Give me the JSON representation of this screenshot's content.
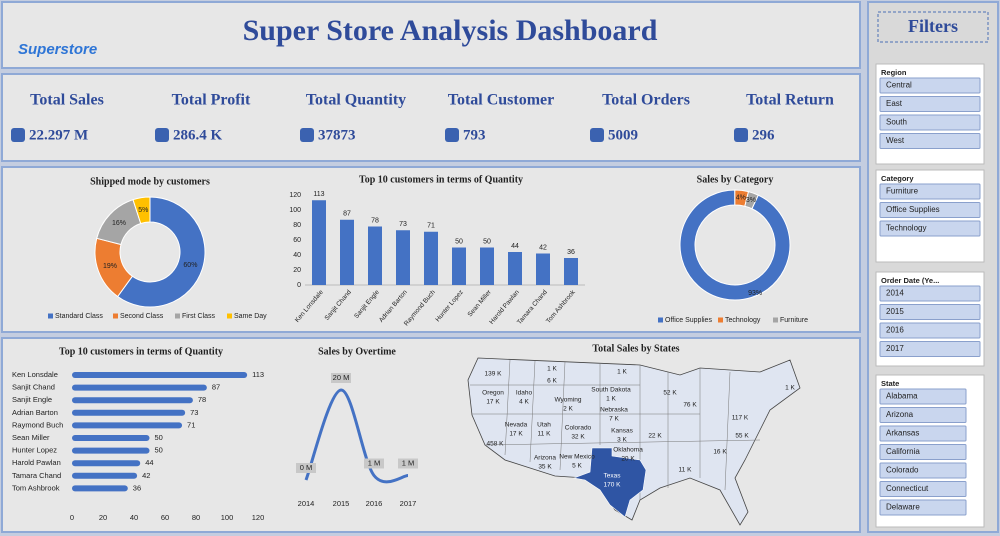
{
  "header": {
    "logo": "Superstore",
    "title": "Super Store Analysis Dashboard"
  },
  "kpis": [
    {
      "label": "Total Sales",
      "value": "22.297 M"
    },
    {
      "label": "Total Profit",
      "value": "286.4 K"
    },
    {
      "label": "Total Quantity",
      "value": "37873"
    },
    {
      "label": "Total Customer",
      "value": "793"
    },
    {
      "label": "Total Orders",
      "value": "5009"
    },
    {
      "label": "Total Return",
      "value": "296"
    }
  ],
  "chart_data": [
    {
      "type": "donut",
      "title": "Shipped mode by customers",
      "categories": [
        "Standard Class",
        "Second Class",
        "First Class",
        "Same Day"
      ],
      "values": [
        60,
        19,
        16,
        5
      ],
      "value_labels": [
        "60%",
        "19%",
        "16%",
        "5%"
      ],
      "colors": [
        "#4472c4",
        "#ed7d31",
        "#a5a5a5",
        "#ffc000"
      ]
    },
    {
      "type": "bar",
      "title": "Top 10 customers in terms of Quantity",
      "categories": [
        "Ken Lonsdale",
        "Sanjit Chand",
        "Sanjit Engle",
        "Adrian Barton",
        "Raymond Buch",
        "Hunter Lopez",
        "Sean Miller",
        "Harold Pawlan",
        "Tamara Chand",
        "Tom Ashbrook"
      ],
      "values": [
        113,
        87,
        78,
        73,
        71,
        50,
        50,
        44,
        42,
        36
      ],
      "color": "#4472c4",
      "ylim": [
        0,
        120
      ],
      "yticks": [
        0,
        20,
        40,
        60,
        80,
        100,
        120
      ]
    },
    {
      "type": "donut",
      "title": "Sales by Category",
      "categories": [
        "Office Supplies",
        "Technology",
        "Furniture"
      ],
      "values": [
        93,
        4,
        3
      ],
      "value_labels": [
        "93%",
        "4%",
        "3%"
      ],
      "colors": [
        "#4472c4",
        "#ed7d31",
        "#a5a5a5"
      ]
    },
    {
      "type": "hbar",
      "title": "Top 10 customers in terms of Quantity",
      "categories": [
        "Ken Lonsdale",
        "Sanjit Chand",
        "Sanjit Engle",
        "Adrian Barton",
        "Raymond Buch",
        "Sean Miller",
        "Hunter Lopez",
        "Harold Pawlan",
        "Tamara Chand",
        "Tom Ashbrook"
      ],
      "values": [
        113,
        87,
        78,
        73,
        71,
        50,
        50,
        44,
        42,
        36
      ],
      "color": "#4472c4",
      "xlim": [
        0,
        120
      ],
      "xticks": [
        0,
        20,
        40,
        60,
        80,
        100,
        120
      ]
    },
    {
      "type": "line",
      "title": "Sales by Overtime",
      "categories": [
        "2014",
        "2015",
        "2016",
        "2017"
      ],
      "values": [
        0,
        20,
        1,
        1
      ],
      "value_labels": [
        "0 M",
        "20 M",
        "1 M",
        "1 M"
      ],
      "color": "#4472c4"
    },
    {
      "type": "map",
      "title": "Total Sales by States",
      "labels": [
        {
          "value": "139 K"
        },
        {
          "value": "1 K"
        },
        {
          "value": "6 K"
        },
        {
          "value": "1 K"
        },
        {
          "name": "Oregon",
          "value": "17 K"
        },
        {
          "name": "Idaho",
          "value": "4 K"
        },
        {
          "name": "Wyoming",
          "value": "2 K"
        },
        {
          "name": "South Dakota",
          "value": "1 K"
        },
        {
          "name": "Nebraska",
          "value": "7 K"
        },
        {
          "name": "Nevada",
          "value": "17 K"
        },
        {
          "name": "Utah",
          "value": "11 K"
        },
        {
          "name": "Colorado",
          "value": "32 K"
        },
        {
          "name": "Kansas",
          "value": "3 K"
        },
        {
          "value": "458 K"
        },
        {
          "name": "Arizona",
          "value": "35 K"
        },
        {
          "name": "New Mexico",
          "value": "5 K"
        },
        {
          "name": "Oklahoma",
          "value": "20 K"
        },
        {
          "name": "Texas",
          "value": "170 K"
        },
        {
          "value": "52 K"
        },
        {
          "value": "76 K"
        },
        {
          "value": "117 K"
        },
        {
          "value": "1 K"
        },
        {
          "value": "22 K"
        },
        {
          "value": "55 K"
        },
        {
          "value": "16 K"
        },
        {
          "value": "11 K"
        }
      ]
    }
  ],
  "filters": {
    "title": "Filters",
    "groups": [
      {
        "name": "Region",
        "items": [
          "Central",
          "East",
          "South",
          "West"
        ]
      },
      {
        "name": "Category",
        "items": [
          "Furniture",
          "Office Supplies",
          "Technology"
        ]
      },
      {
        "name": "Order Date (Ye...",
        "items": [
          "2014",
          "2015",
          "2016",
          "2017"
        ]
      },
      {
        "name": "State",
        "items": [
          "Alabama",
          "Arizona",
          "Arkansas",
          "California",
          "Colorado",
          "Connecticut",
          "Delaware"
        ]
      }
    ]
  }
}
